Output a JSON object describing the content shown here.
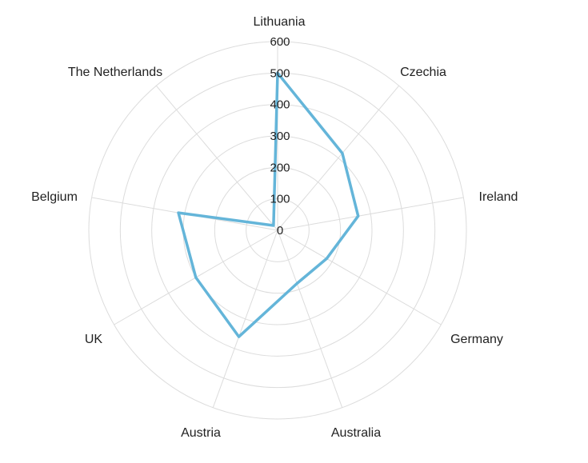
{
  "chart_data": {
    "type": "radar",
    "title": "",
    "categories": [
      "Lithuania",
      "Czechia",
      "Ireland",
      "Germany",
      "Australia",
      "Austria",
      "UK",
      "Belgium",
      "The Netherlands"
    ],
    "series": [
      {
        "values": [
          500,
          320,
          260,
          180,
          180,
          360,
          300,
          320,
          20
        ],
        "color": "#64b5d9"
      }
    ],
    "rlim": [
      0,
      600
    ],
    "ticks": [
      0,
      100,
      200,
      300,
      400,
      500,
      600
    ],
    "grid": true,
    "legend": "none"
  }
}
